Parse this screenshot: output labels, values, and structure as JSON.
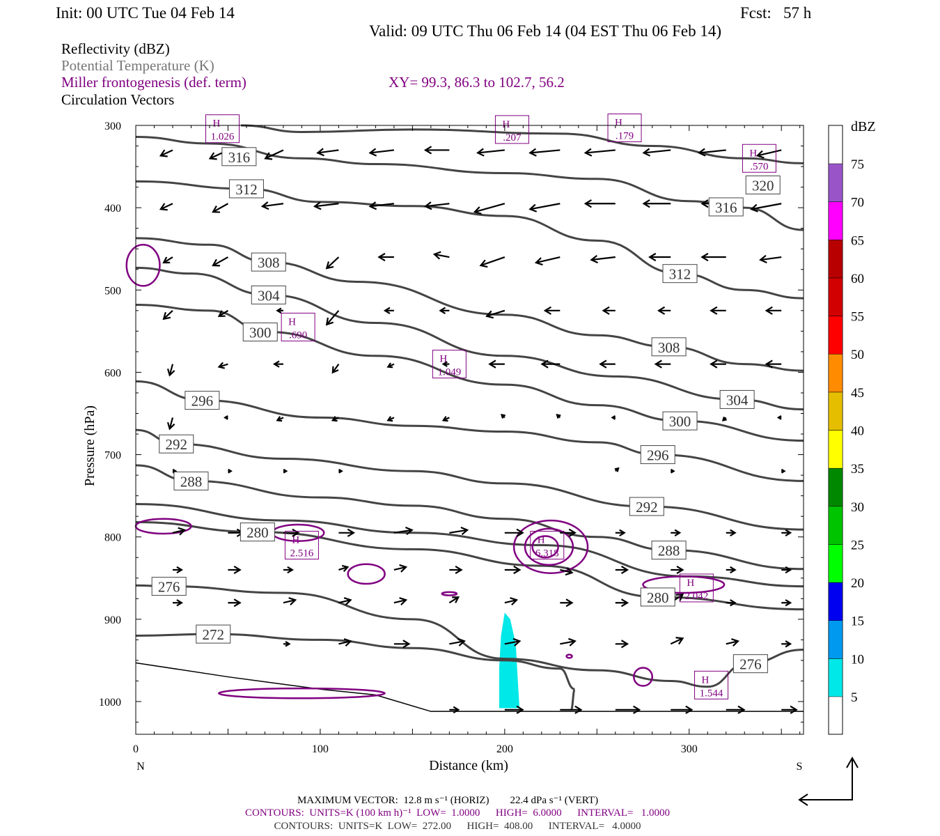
{
  "header": {
    "init": "Init: 00 UTC Tue 04 Feb 14",
    "fcst": "Fcst:   57 h",
    "valid": "Valid: 09 UTC Thu 06 Feb 14 (04 EST Thu 06 Feb 14)"
  },
  "legend": {
    "reflectivity": "Reflectivity (dBZ)",
    "theta": "Potential Temperature (K)",
    "frontogenesis": "Miller frontogenesis (def. term)",
    "xy": "XY=  99.3, 86.3 to 102.7, 56.2",
    "vectors": "Circulation Vectors"
  },
  "footer": {
    "max_vector": "MAXIMUM VECTOR:  12.8 m s⁻¹ (HORIZ)        22.4 dPa s⁻¹ (VERT)",
    "contours_fg": "CONTOURS:  UNITS=K (100 km h)⁻¹  LOW=  1.0000      HIGH=  6.0000      INTERVAL=   1.0000",
    "contours_theta": "CONTOURS:  UNITS=K  LOW=  272.00      HIGH=  408.00      INTERVAL=   4.0000"
  },
  "colors": {
    "theta": "#444444",
    "fronto": "#800080",
    "vector": "#000000"
  },
  "chart_data": {
    "type": "cross-section",
    "xlabel": "Distance (km)",
    "ylabel": "Pressure (hPa)",
    "xlim": [
      0,
      362
    ],
    "ylim": [
      1040,
      300
    ],
    "x_ticks": [
      0,
      100,
      200,
      300
    ],
    "y_ticks": [
      300,
      400,
      500,
      600,
      700,
      800,
      900,
      1000
    ],
    "x_end_labels": {
      "left": "N",
      "right": "S"
    },
    "colorbar": {
      "title": "dBZ",
      "levels": [
        5,
        10,
        15,
        20,
        25,
        30,
        35,
        40,
        45,
        50,
        55,
        60,
        65,
        70,
        75
      ],
      "colors": [
        "#00E8E8",
        "#0099F0",
        "#0000F0",
        "#00FF00",
        "#00C400",
        "#008800",
        "#FFFF00",
        "#E6BE00",
        "#FF8C00",
        "#FF0000",
        "#D20000",
        "#B80000",
        "#FF00FF",
        "#9955C8"
      ]
    },
    "reflectivity_areas": [
      {
        "dbz": 5,
        "points": [
          [
            197,
            1008
          ],
          [
            197,
            960
          ],
          [
            198,
            920
          ],
          [
            200,
            892
          ],
          [
            203,
            900
          ],
          [
            206,
            930
          ],
          [
            207,
            970
          ],
          [
            208,
            1008
          ]
        ]
      }
    ],
    "theta_contours": [
      {
        "value": "320",
        "label_at": 340,
        "points": [
          [
            57,
            300
          ],
          [
            90,
            308
          ],
          [
            150,
            305
          ],
          [
            230,
            310
          ],
          [
            280,
            325
          ],
          [
            330,
            340
          ],
          [
            362,
            346
          ]
        ]
      },
      {
        "value": "316",
        "label_at": 56,
        "points": [
          [
            0,
            314
          ],
          [
            40,
            322
          ],
          [
            90,
            340
          ],
          [
            130,
            347
          ],
          [
            200,
            358
          ],
          [
            250,
            365
          ],
          [
            300,
            392
          ],
          [
            330,
            400
          ],
          [
            362,
            427
          ]
        ]
      },
      {
        "value": "316",
        "label_at": 320,
        "points": null
      },
      {
        "value": "312",
        "label_at": 60,
        "points": [
          [
            0,
            368
          ],
          [
            60,
            377
          ],
          [
            100,
            393
          ],
          [
            150,
            398
          ],
          [
            200,
            410
          ],
          [
            250,
            440
          ],
          [
            295,
            480
          ],
          [
            330,
            500
          ],
          [
            362,
            510
          ]
        ]
      },
      {
        "value": "308",
        "label_at": 72,
        "points": [
          [
            0,
            437
          ],
          [
            40,
            445
          ],
          [
            72,
            466
          ],
          [
            120,
            490
          ],
          [
            200,
            530
          ],
          [
            250,
            555
          ],
          [
            289,
            569
          ],
          [
            330,
            590
          ],
          [
            362,
            598
          ]
        ]
      },
      {
        "value": "304",
        "label_at": 72,
        "points": [
          [
            0,
            473
          ],
          [
            30,
            480
          ],
          [
            72,
            506
          ],
          [
            130,
            540
          ],
          [
            200,
            580
          ],
          [
            260,
            605
          ],
          [
            326,
            633
          ],
          [
            362,
            645
          ]
        ]
      },
      {
        "value": "300",
        "label_at": 72,
        "points": [
          [
            0,
            518
          ],
          [
            40,
            525
          ],
          [
            72,
            551
          ],
          [
            130,
            580
          ],
          [
            200,
            615
          ],
          [
            250,
            640
          ],
          [
            295,
            659
          ],
          [
            362,
            683
          ]
        ]
      },
      {
        "value": "296",
        "label_at": 36,
        "points": [
          [
            0,
            611
          ],
          [
            36,
            634
          ],
          [
            100,
            655
          ],
          [
            150,
            665
          ],
          [
            200,
            672
          ],
          [
            250,
            685
          ],
          [
            283,
            700
          ],
          [
            362,
            732
          ]
        ]
      },
      {
        "value": "292",
        "label_at": 22,
        "points": [
          [
            0,
            670
          ],
          [
            22,
            687
          ],
          [
            80,
            705
          ],
          [
            150,
            720
          ],
          [
            200,
            735
          ],
          [
            277,
            763
          ],
          [
            362,
            791
          ]
        ]
      },
      {
        "value": "288",
        "label_at": 30,
        "points": [
          [
            0,
            713
          ],
          [
            30,
            732
          ],
          [
            100,
            752
          ],
          [
            150,
            762
          ],
          [
            200,
            778
          ],
          [
            250,
            800
          ],
          [
            289,
            816
          ],
          [
            362,
            839
          ]
        ]
      },
      {
        "value": "284",
        "label_at": null,
        "points": [
          [
            0,
            760
          ],
          [
            80,
            780
          ],
          [
            150,
            795
          ],
          [
            220,
            810
          ],
          [
            300,
            848
          ],
          [
            362,
            860
          ]
        ]
      },
      {
        "value": "280",
        "label_at": 66,
        "points": [
          [
            0,
            782
          ],
          [
            66,
            794
          ],
          [
            150,
            815
          ],
          [
            220,
            835
          ],
          [
            283,
            873
          ],
          [
            362,
            888
          ]
        ]
      },
      {
        "value": "276",
        "label_at": 18,
        "points": [
          [
            0,
            859
          ],
          [
            18,
            860
          ],
          [
            80,
            868
          ],
          [
            150,
            900
          ],
          [
            200,
            948
          ],
          [
            250,
            962
          ],
          [
            290,
            975
          ],
          [
            310,
            982
          ],
          [
            331,
            954
          ],
          [
            362,
            937
          ]
        ]
      },
      {
        "value": "272",
        "label_at": 42,
        "points": [
          [
            0,
            920
          ],
          [
            42,
            918
          ],
          [
            100,
            925
          ],
          [
            150,
            935
          ],
          [
            200,
            950
          ],
          [
            230,
            960
          ],
          [
            238,
            985
          ],
          [
            236,
            1010
          ]
        ]
      }
    ],
    "theta_extra_labels": [
      {
        "value": "316",
        "x": 320,
        "p": 399
      },
      {
        "value": "312",
        "x": 295,
        "p": 480
      },
      {
        "value": "308",
        "x": 289,
        "p": 569
      },
      {
        "value": "304",
        "x": 326,
        "p": 633
      },
      {
        "value": "300",
        "x": 295,
        "p": 659
      },
      {
        "value": "296",
        "x": 283,
        "p": 700
      },
      {
        "value": "292",
        "x": 277,
        "p": 763
      },
      {
        "value": "288",
        "x": 289,
        "p": 816
      },
      {
        "value": "280",
        "x": 283,
        "p": 873
      },
      {
        "value": "276",
        "x": 331,
        "p": 954
      }
    ],
    "surface": [
      [
        0,
        953
      ],
      [
        50,
        970
      ],
      [
        100,
        985
      ],
      [
        130,
        992
      ],
      [
        160,
        1012
      ],
      [
        362,
        1012
      ]
    ],
    "fronto_maxima": [
      {
        "label": "H",
        "value": "1.026",
        "x": 47,
        "p": 304
      },
      {
        "label": "H",
        "value": ".207",
        "x": 204,
        "p": 305
      },
      {
        "label": "H",
        "value": ".179",
        "x": 265,
        "p": 303
      },
      {
        "label": "H",
        "value": ".570",
        "x": 338,
        "p": 340
      },
      {
        "label": "H",
        "value": ".690",
        "x": 88,
        "p": 545
      },
      {
        "label": "H",
        "value": "1.049",
        "x": 170,
        "p": 590
      },
      {
        "label": "H",
        "value": "2.516",
        "x": 90,
        "p": 810
      },
      {
        "label": "H",
        "value": "6.318",
        "x": 223,
        "p": 810
      },
      {
        "label": "H",
        "value": "2.042",
        "x": 304,
        "p": 862
      },
      {
        "label": "H",
        "value": "1.544",
        "x": 312,
        "p": 980
      }
    ],
    "fronto_contours": [
      {
        "value": 1,
        "cx": 225,
        "cp": 812,
        "rx": 20,
        "rp": 32
      },
      {
        "value": 2,
        "cx": 224,
        "cp": 812,
        "rx": 13,
        "rp": 22
      },
      {
        "value": 3,
        "cx": 222,
        "cp": 812,
        "rx": 7,
        "rp": 13
      },
      {
        "value": 1,
        "cx": 88,
        "cp": 795,
        "rx": 14,
        "rp": 10
      },
      {
        "value": 1,
        "cx": 125,
        "cp": 845,
        "rx": 10,
        "rp": 12
      },
      {
        "value": 1,
        "cx": 170,
        "cp": 869,
        "rx": 4,
        "rp": 2
      },
      {
        "value": 1,
        "cx": 297,
        "cp": 858,
        "rx": 22,
        "rp": 10
      },
      {
        "value": 1,
        "cx": 275,
        "cp": 970,
        "rx": 5,
        "rp": 11
      },
      {
        "value": 1,
        "cx": 235,
        "cp": 945,
        "rx": 1.5,
        "rp": 2
      },
      {
        "value": 1,
        "cx": 15,
        "cp": 787,
        "rx": 15,
        "rp": 9
      },
      {
        "value": 1,
        "cx": 4,
        "cp": 470,
        "rx": 9,
        "rp": 25
      },
      {
        "value": 1,
        "cx": 90,
        "cp": 990,
        "rx": 45,
        "rp": 6
      }
    ],
    "vectors": {
      "distances": [
        20,
        50,
        80,
        110,
        140,
        170,
        200,
        230,
        260,
        290,
        320,
        350
      ],
      "rows": [
        {
          "p": 330,
          "u": [
            -4,
            -6,
            -6,
            -7,
            -8,
            -8,
            -9,
            -10,
            -10,
            -9,
            -9,
            -8
          ],
          "w": [
            -2,
            -3,
            -3,
            -1,
            -1,
            0,
            -1,
            -1,
            -1,
            -1,
            -1,
            -2
          ]
        },
        {
          "p": 395,
          "u": [
            -4,
            -5,
            -7,
            -8,
            -8,
            -8,
            -10,
            -10,
            -10,
            -9,
            -8,
            -10
          ],
          "w": [
            -2,
            -3,
            -1,
            -1,
            -1,
            -1,
            -3,
            -2,
            0,
            0,
            0,
            -2
          ]
        },
        {
          "p": 460,
          "u": [
            -3,
            -5,
            -3,
            -4,
            -5,
            -5,
            -8,
            -8,
            -8,
            -7,
            -8,
            -7
          ],
          "w": [
            -2,
            -3,
            0,
            -4,
            0,
            1,
            -3,
            -2,
            -1,
            0,
            0,
            -1
          ]
        },
        {
          "p": 525,
          "u": [
            -3,
            -3,
            -2,
            -4,
            -3,
            -3,
            -6,
            -5,
            -4,
            -4,
            -5,
            -5
          ],
          "w": [
            -3,
            -2,
            0,
            -5,
            0,
            0,
            -2,
            0,
            0,
            0,
            0,
            0
          ]
        },
        {
          "p": 590,
          "u": [
            -1,
            -3,
            -3,
            -2,
            -2,
            -2,
            -5,
            -6,
            -5,
            -5,
            -5,
            -5
          ],
          "w": [
            -4,
            -1,
            0,
            -3,
            -1,
            0,
            0,
            0,
            0,
            0,
            0,
            0
          ]
        },
        {
          "p": 655,
          "u": [
            -1,
            -1,
            -2,
            -2,
            -2,
            -2,
            -1,
            -1,
            -1,
            -1,
            -1,
            -1
          ],
          "w": [
            -4,
            0,
            -1,
            -1,
            -1,
            -1,
            1,
            1,
            0,
            -1,
            -1,
            0
          ]
        },
        {
          "p": 720,
          "u": [
            1,
            1,
            1,
            1,
            0,
            0,
            0,
            0,
            1,
            1,
            0,
            1
          ],
          "w": [
            0,
            0,
            0,
            0,
            0,
            0,
            0,
            0,
            1,
            0,
            0,
            0
          ]
        },
        {
          "p": 795,
          "u": [
            4,
            5,
            5,
            5,
            6,
            6,
            6,
            5,
            3,
            3,
            3,
            3
          ],
          "w": [
            1,
            0,
            0,
            0,
            1,
            1,
            0,
            0,
            0,
            0,
            0,
            0
          ]
        },
        {
          "p": 840,
          "u": [
            3,
            4,
            3,
            3,
            4,
            4,
            5,
            4,
            4,
            4,
            3,
            3
          ],
          "w": [
            0,
            0,
            0,
            1,
            1,
            0,
            0,
            -1,
            0,
            0,
            0,
            0
          ]
        },
        {
          "p": 880,
          "u": [
            3,
            4,
            4,
            4,
            4,
            3,
            4,
            4,
            4,
            4,
            3,
            3
          ],
          "w": [
            0,
            0,
            1,
            1,
            1,
            2,
            1,
            0,
            0,
            3,
            0,
            0
          ]
        },
        {
          "p": 930,
          "u": [
            0,
            0,
            2,
            4,
            5,
            5,
            5,
            5,
            4,
            4,
            4,
            3
          ],
          "w": [
            0,
            0,
            0,
            1,
            0,
            1,
            1,
            1,
            0,
            2,
            1,
            0
          ]
        },
        {
          "p": 1010,
          "u": [
            0,
            0,
            0,
            0,
            0,
            3,
            6,
            7,
            8,
            7,
            6,
            5
          ],
          "w": [
            0,
            0,
            0,
            0,
            0,
            0,
            0,
            0,
            0,
            0,
            0,
            0
          ]
        }
      ]
    }
  }
}
